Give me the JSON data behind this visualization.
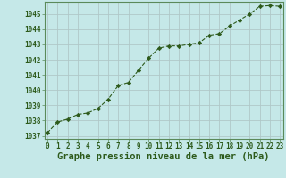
{
  "x": [
    0,
    1,
    2,
    3,
    4,
    5,
    6,
    7,
    8,
    9,
    10,
    11,
    12,
    13,
    14,
    15,
    16,
    17,
    18,
    19,
    20,
    21,
    22,
    23
  ],
  "y": [
    1037.2,
    1037.9,
    1038.1,
    1038.4,
    1038.5,
    1038.8,
    1039.4,
    1040.3,
    1040.5,
    1041.3,
    1042.1,
    1042.75,
    1042.9,
    1042.9,
    1043.0,
    1043.1,
    1043.6,
    1043.7,
    1044.2,
    1044.6,
    1045.0,
    1045.5,
    1045.55,
    1045.5
  ],
  "ylim": [
    1036.8,
    1045.8
  ],
  "yticks": [
    1037,
    1038,
    1039,
    1040,
    1041,
    1042,
    1043,
    1044,
    1045
  ],
  "xlim": [
    -0.3,
    23.3
  ],
  "xticks": [
    0,
    1,
    2,
    3,
    4,
    5,
    6,
    7,
    8,
    9,
    10,
    11,
    12,
    13,
    14,
    15,
    16,
    17,
    18,
    19,
    20,
    21,
    22,
    23
  ],
  "xlabel": "Graphe pression niveau de la mer (hPa)",
  "line_color": "#2d5a1b",
  "marker": "D",
  "marker_size": 2.2,
  "bg_color": "#c5e8e8",
  "grid_color": "#b0c8c8",
  "text_color": "#2d5a1b",
  "tick_label_fontsize": 5.5,
  "xlabel_fontsize": 7.5,
  "spine_color": "#5a8a5a"
}
